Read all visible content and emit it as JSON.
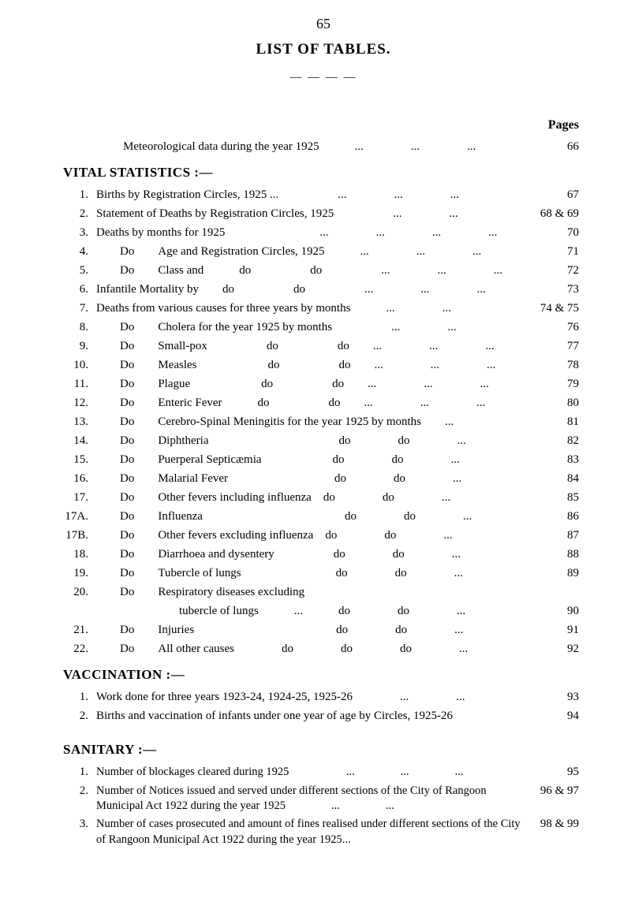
{
  "page_number": "65",
  "title": "LIST OF TABLES.",
  "rule": "— — — —",
  "pages_label": "Pages",
  "meteo": {
    "text": "Meteorological data during the year 1925　　　...　　　　...　　　　...",
    "page": "66"
  },
  "vital_heading": "VITAL STATISTICS :—",
  "vital": [
    {
      "n": "1.",
      "t": "Births by Registration Circles, 1925 ...　　　　　...　　　　...　　　　...",
      "p": "67"
    },
    {
      "n": "2.",
      "t": "Statement of Deaths by Registration Circles, 1925　　　　　...　　　　...",
      "p": "68 & 69"
    },
    {
      "n": "3.",
      "t": "Deaths by months for 1925　　　　　　　　...　　　　...　　　　...　　　　...",
      "p": "70"
    },
    {
      "n": "4.",
      "t": "　　Do　　Age and Registration Circles, 1925　　　...　　　　...　　　　...",
      "p": "71"
    },
    {
      "n": "5.",
      "t": "　　Do　　Class and　　　do　　　　　do　　　　　...　　　　...　　　　...",
      "p": "72"
    },
    {
      "n": "6.",
      "t": "Infantile Mortality by　　do　　　　　do　　　　　...　　　　...　　　　...",
      "p": "73"
    },
    {
      "n": "7.",
      "t": "Deaths from various causes for three years by months　　　...　　　　...",
      "p": "74 & 75"
    },
    {
      "n": "8.",
      "t": "　　Do　　Cholera for the year 1925 by months　　　　　...　　　　...",
      "p": "76"
    },
    {
      "n": "9.",
      "t": "　　Do　　Small-pox　　　　　do　　　　　do　　...　　　　...　　　　...",
      "p": "77"
    },
    {
      "n": "10.",
      "t": "　　Do　　Measles　　　　　　do　　　　　do　　...　　　　...　　　　...",
      "p": "78"
    },
    {
      "n": "11.",
      "t": "　　Do　　Plague　　　　　　do　　　　　do　　...　　　　...　　　　...",
      "p": "79"
    },
    {
      "n": "12.",
      "t": "　　Do　　Enteric Fever　　　do　　　　　do　　...　　　　...　　　　...",
      "p": "80"
    },
    {
      "n": "13.",
      "t": "　　Do　　Cerebro-Spinal Meningitis for the year 1925 by months　　...",
      "p": "81"
    },
    {
      "n": "14.",
      "t": "　　Do　　Diphtheria　　　　　　　　　　　do　　　　do　　　　...",
      "p": "82"
    },
    {
      "n": "15.",
      "t": "　　Do　　Puerperal Septicæmia　　　　　　do　　　　do　　　　...",
      "p": "83"
    },
    {
      "n": "16.",
      "t": "　　Do　　Malarial Fever　　　　　　　　　do　　　　do　　　　...",
      "p": "84"
    },
    {
      "n": "17.",
      "t": "　　Do　　Other fevers including influenza　do　　　　do　　　　...",
      "p": "85"
    },
    {
      "n": "17A.",
      "t": "　　Do　　Influenza　　　　　　　　　　　　do　　　　do　　　　...",
      "p": "86"
    },
    {
      "n": "17B.",
      "t": "　　Do　　Other fevers excluding influenza　do　　　　do　　　　...",
      "p": "87"
    },
    {
      "n": "18.",
      "t": "　　Do　　Diarrhoea and dysentery　　　　　do　　　　do　　　　...",
      "p": "88"
    },
    {
      "n": "19.",
      "t": "　　Do　　Tubercle of lungs　　　　　　　　do　　　　do　　　　...",
      "p": "89"
    },
    {
      "n": "20.",
      "t": "　　Do　　Respiratory diseases excluding",
      "p": ""
    },
    {
      "n": "",
      "t": "　　　　　　　tubercle of lungs　　　...　　　do　　　　do　　　　...",
      "p": "90"
    },
    {
      "n": "21.",
      "t": "　　Do　　Injuries　　　　　　　　　　　　do　　　　do　　　　...",
      "p": "91"
    },
    {
      "n": "22.",
      "t": "　　Do　　All other causes　　　　do　　　　do　　　　do　　　　...",
      "p": "92"
    }
  ],
  "vacc_heading": "VACCINATION :—",
  "vacc": [
    {
      "n": "1.",
      "t": "Work done for three years 1923-24, 1924-25, 1925-26　　　　...　　　　...",
      "p": "93"
    },
    {
      "n": "2.",
      "t": "Births and vaccination of infants under one year of age by Circles, 1925-26",
      "p": "94"
    }
  ],
  "sanit_heading": "SANITARY :—",
  "sanit": [
    {
      "n": "1.",
      "t": "Number of blockages cleared during 1925　　　　　...　　　　...　　　　...",
      "p": "95"
    },
    {
      "n": "2.",
      "t": "Number of Notices issued and served under different sections of the City of Rangoon Municipal Act 1922 during the year 1925　　　　...　　　　...",
      "p": "96 & 97"
    },
    {
      "n": "3.",
      "t": "Number of cases prosecuted and amount of fines realised under different sections of the City of Rangoon Municipal Act 1922 during the year 1925...",
      "p": "98 & 99"
    }
  ]
}
